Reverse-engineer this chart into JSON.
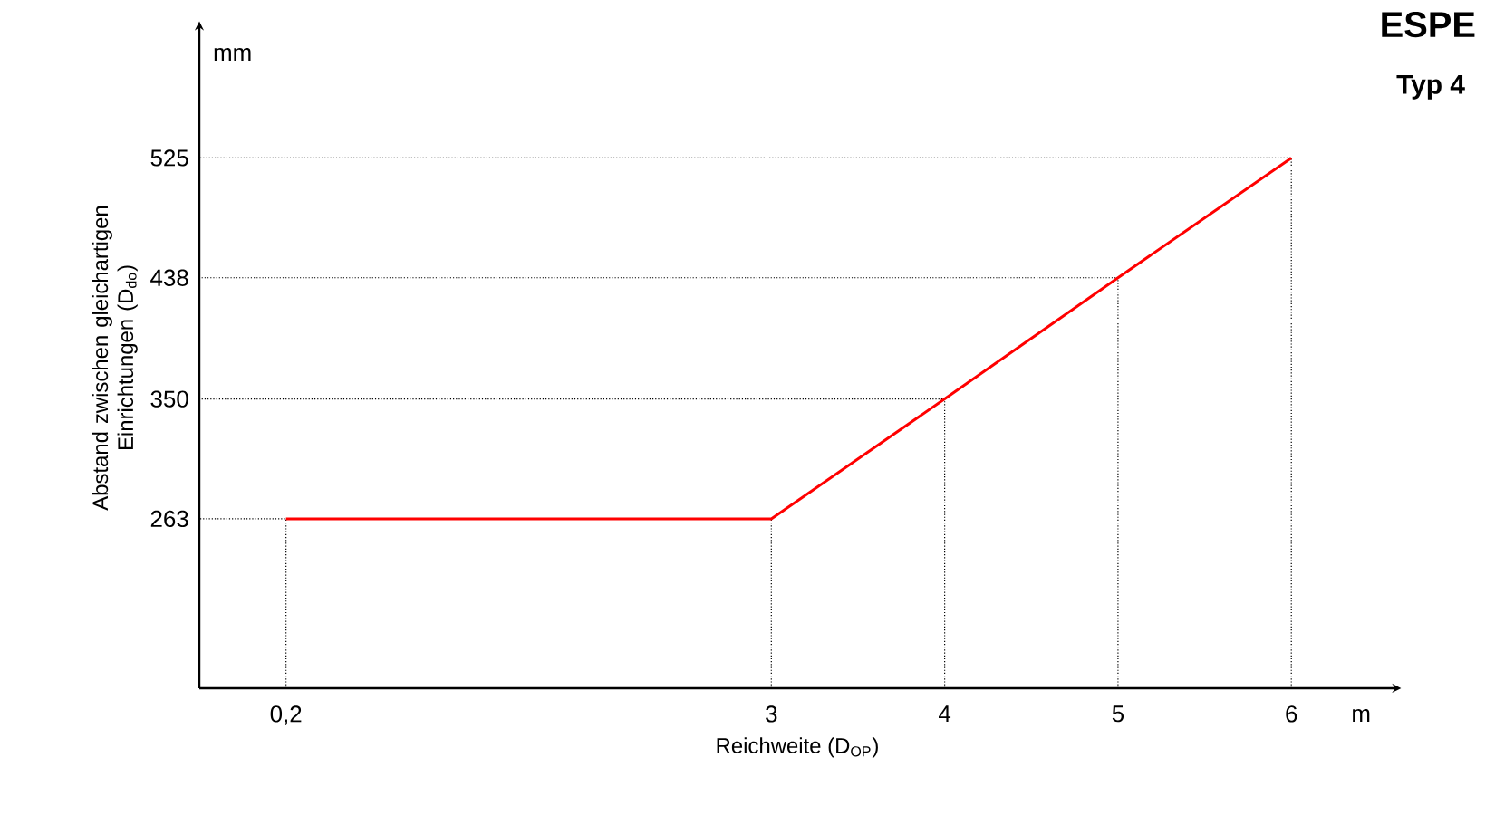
{
  "chart_data": {
    "type": "line",
    "title": "ESPE",
    "subtitle": "Typ 4",
    "xlabel": "Reichweite (D$_{OP}$)",
    "ylabel": "Abstand zwischen gleichartigen Einrichtungen (D$_{do}$)",
    "x": [
      0.2,
      3,
      4,
      5,
      6
    ],
    "series": [
      {
        "color": "#000000",
        "line_style": "dotted",
        "x": [
          0.2,
          0.2,
          -0.3
        ],
        "values": [
          140,
          263,
          263
        ]
      },
      {
        "color": "#000000",
        "line_style": "dotted",
        "x": [
          3,
          3
        ],
        "values": [
          140,
          263
        ]
      },
      {
        "color": "#000000",
        "line_style": "dotted",
        "x": [
          4,
          4,
          -0.3
        ],
        "values": [
          140,
          350,
          350
        ]
      },
      {
        "color": "#000000",
        "line_style": "dotted",
        "x": [
          5,
          5,
          -0.3
        ],
        "values": [
          140,
          438,
          438
        ]
      },
      {
        "color": "#000000",
        "line_style": "dotted",
        "x": [
          6,
          6,
          -0.3
        ],
        "values": [
          140,
          525,
          525
        ]
      },
      {
        "color": "#ff0000",
        "values": [
          263,
          263,
          350,
          438,
          525
        ]
      }
    ],
    "xlim": [
      -0.3,
      6.6
    ],
    "ylim": [
      140,
      620
    ],
    "xticks": [
      {
        "value": 0.2,
        "label": "0,2"
      },
      3,
      4,
      5,
      6
    ],
    "yticks": [
      263,
      350,
      438,
      525
    ],
    "annotations": [
      "mm",
      "m"
    ],
    "grid": false,
    "legend": false,
    "marker": "none",
    "line_style": "solid"
  }
}
